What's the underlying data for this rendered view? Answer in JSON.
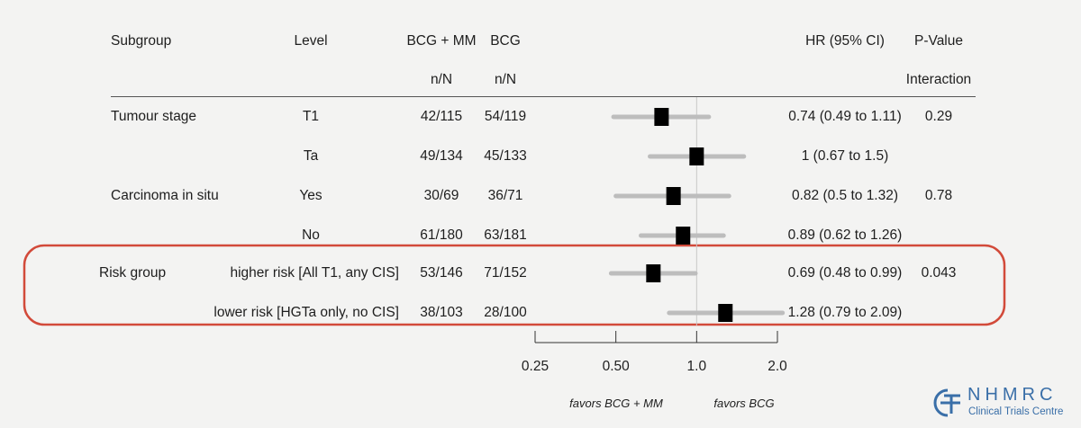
{
  "headers": {
    "subgroup": "Subgroup",
    "level": "Level",
    "arm1_line1": "BCG + MM",
    "arm1_line2": "n/N",
    "arm2_line1": "BCG",
    "arm2_line2": "n/N",
    "hr": "HR (95% CI)",
    "pval_line1": "P-Value",
    "pval_line2": "Interaction"
  },
  "rows": [
    {
      "subgroup": "Tumour stage",
      "level": "T1",
      "arm1": "42/115",
      "arm2": "54/119",
      "hr_text": "0.74 (0.49 to 1.11)",
      "pval": "0.29"
    },
    {
      "subgroup": "",
      "level": "Ta",
      "arm1": "49/134",
      "arm2": "45/133",
      "hr_text": "1 (0.67 to 1.5)",
      "pval": ""
    },
    {
      "subgroup": "Carcinoma in situ",
      "level": "Yes",
      "arm1": "30/69",
      "arm2": "36/71",
      "hr_text": "0.82 (0.5 to 1.32)",
      "pval": "0.78"
    },
    {
      "subgroup": "",
      "level": "No",
      "arm1": "61/180",
      "arm2": "63/181",
      "hr_text": "0.89 (0.62 to 1.26)",
      "pval": ""
    },
    {
      "subgroup": "Risk group",
      "level": "higher risk [All T1, any CIS]",
      "arm1": "53/146",
      "arm2": "71/152",
      "hr_text": "0.69 (0.48 to 0.99)",
      "pval": "0.043"
    },
    {
      "subgroup": "",
      "level": "lower risk [HGTa only, no CIS]",
      "arm1": "38/103",
      "arm2": "28/100",
      "hr_text": "1.28 (0.79 to 2.09)",
      "pval": ""
    }
  ],
  "chart_data": {
    "type": "forest",
    "x_scale": "log",
    "xlim": [
      0.25,
      2.0
    ],
    "reference_line": 1.0,
    "ticks": [
      0.25,
      0.5,
      1.0,
      2.0
    ],
    "tick_labels": [
      "0.25",
      "0.50",
      "1.0",
      "2.0"
    ],
    "favors_left": "favors BCG + MM",
    "favors_right": "favors BCG",
    "highlighted_rows": [
      4,
      5
    ],
    "highlight_color": "#d24a3a",
    "ci_color": "#bdbdbd",
    "point_color": "#000000",
    "points": [
      {
        "hr": 0.74,
        "lo": 0.49,
        "hi": 1.11
      },
      {
        "hr": 1.0,
        "lo": 0.67,
        "hi": 1.5
      },
      {
        "hr": 0.82,
        "lo": 0.5,
        "hi": 1.32
      },
      {
        "hr": 0.89,
        "lo": 0.62,
        "hi": 1.26
      },
      {
        "hr": 0.69,
        "lo": 0.48,
        "hi": 0.99
      },
      {
        "hr": 1.28,
        "lo": 0.79,
        "hi": 2.09
      }
    ]
  },
  "logo": {
    "name": "NHMRC",
    "subtitle": "Clinical Trials Centre",
    "color": "#3a6fa8"
  }
}
